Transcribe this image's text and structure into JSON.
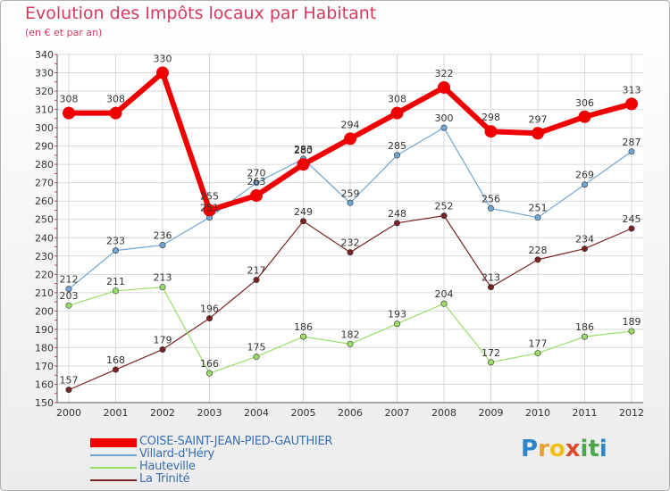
{
  "chart_data": {
    "type": "line",
    "title": "Evolution des Impôts locaux par Habitant",
    "subtitle": "(en € et par an)",
    "xlabel": "",
    "ylabel": "",
    "x": [
      "2000",
      "2001",
      "2002",
      "2003",
      "2004",
      "2005",
      "2006",
      "2007",
      "2008",
      "2009",
      "2010",
      "2011",
      "2012"
    ],
    "ylim": [
      150,
      340
    ],
    "yticks": [
      150,
      160,
      170,
      180,
      190,
      200,
      210,
      220,
      230,
      240,
      250,
      260,
      270,
      280,
      290,
      300,
      310,
      320,
      330,
      340
    ],
    "grid": true,
    "legend_position": "bottom-left",
    "series": [
      {
        "name": "COISE-SAINT-JEAN-PIED-GAUTHIER",
        "color": "#ee0000",
        "values": [
          308,
          308,
          330,
          255,
          263,
          280,
          294,
          308,
          322,
          298,
          297,
          306,
          313
        ],
        "labels": [
          "308",
          "308",
          "330",
          "255",
          "263",
          "280",
          "294",
          "308",
          "322",
          "298",
          "297",
          "306",
          "313"
        ]
      },
      {
        "name": "Villard-d'Héry",
        "color": "#6fa6d6",
        "values": [
          212,
          233,
          236,
          251,
          270,
          283,
          259,
          285,
          300,
          256,
          251,
          269,
          287
        ],
        "labels": [
          "212",
          "233",
          "236",
          "251",
          "270",
          "283",
          "259",
          "285",
          "300",
          "256",
          "251",
          "269",
          "287"
        ]
      },
      {
        "name": "Hauteville",
        "color": "#99dd66",
        "values": [
          203,
          211,
          213,
          166,
          175,
          186,
          182,
          193,
          204,
          172,
          177,
          186,
          189
        ],
        "labels": [
          "203",
          "211",
          "213",
          "166",
          "175",
          "186",
          "182",
          "193",
          "204",
          "172",
          "177",
          "186",
          "189"
        ]
      },
      {
        "name": "La Trinité",
        "color": "#7b2323",
        "values": [
          157,
          168,
          179,
          196,
          217,
          249,
          232,
          248,
          252,
          213,
          228,
          234,
          245
        ],
        "labels": [
          "157",
          "168",
          "179",
          "196",
          "217",
          "249",
          "232",
          "248",
          "252",
          "213",
          "228",
          "234",
          "245"
        ]
      }
    ]
  },
  "logo": {
    "letters": [
      "P",
      "r",
      "o",
      "x",
      "i",
      "t",
      "i"
    ],
    "colors": [
      "#2e86c8",
      "#e8a033",
      "#f2c010",
      "#e04a2a",
      "#4aa84a",
      "#4aa84a",
      "#2e86c8"
    ]
  }
}
